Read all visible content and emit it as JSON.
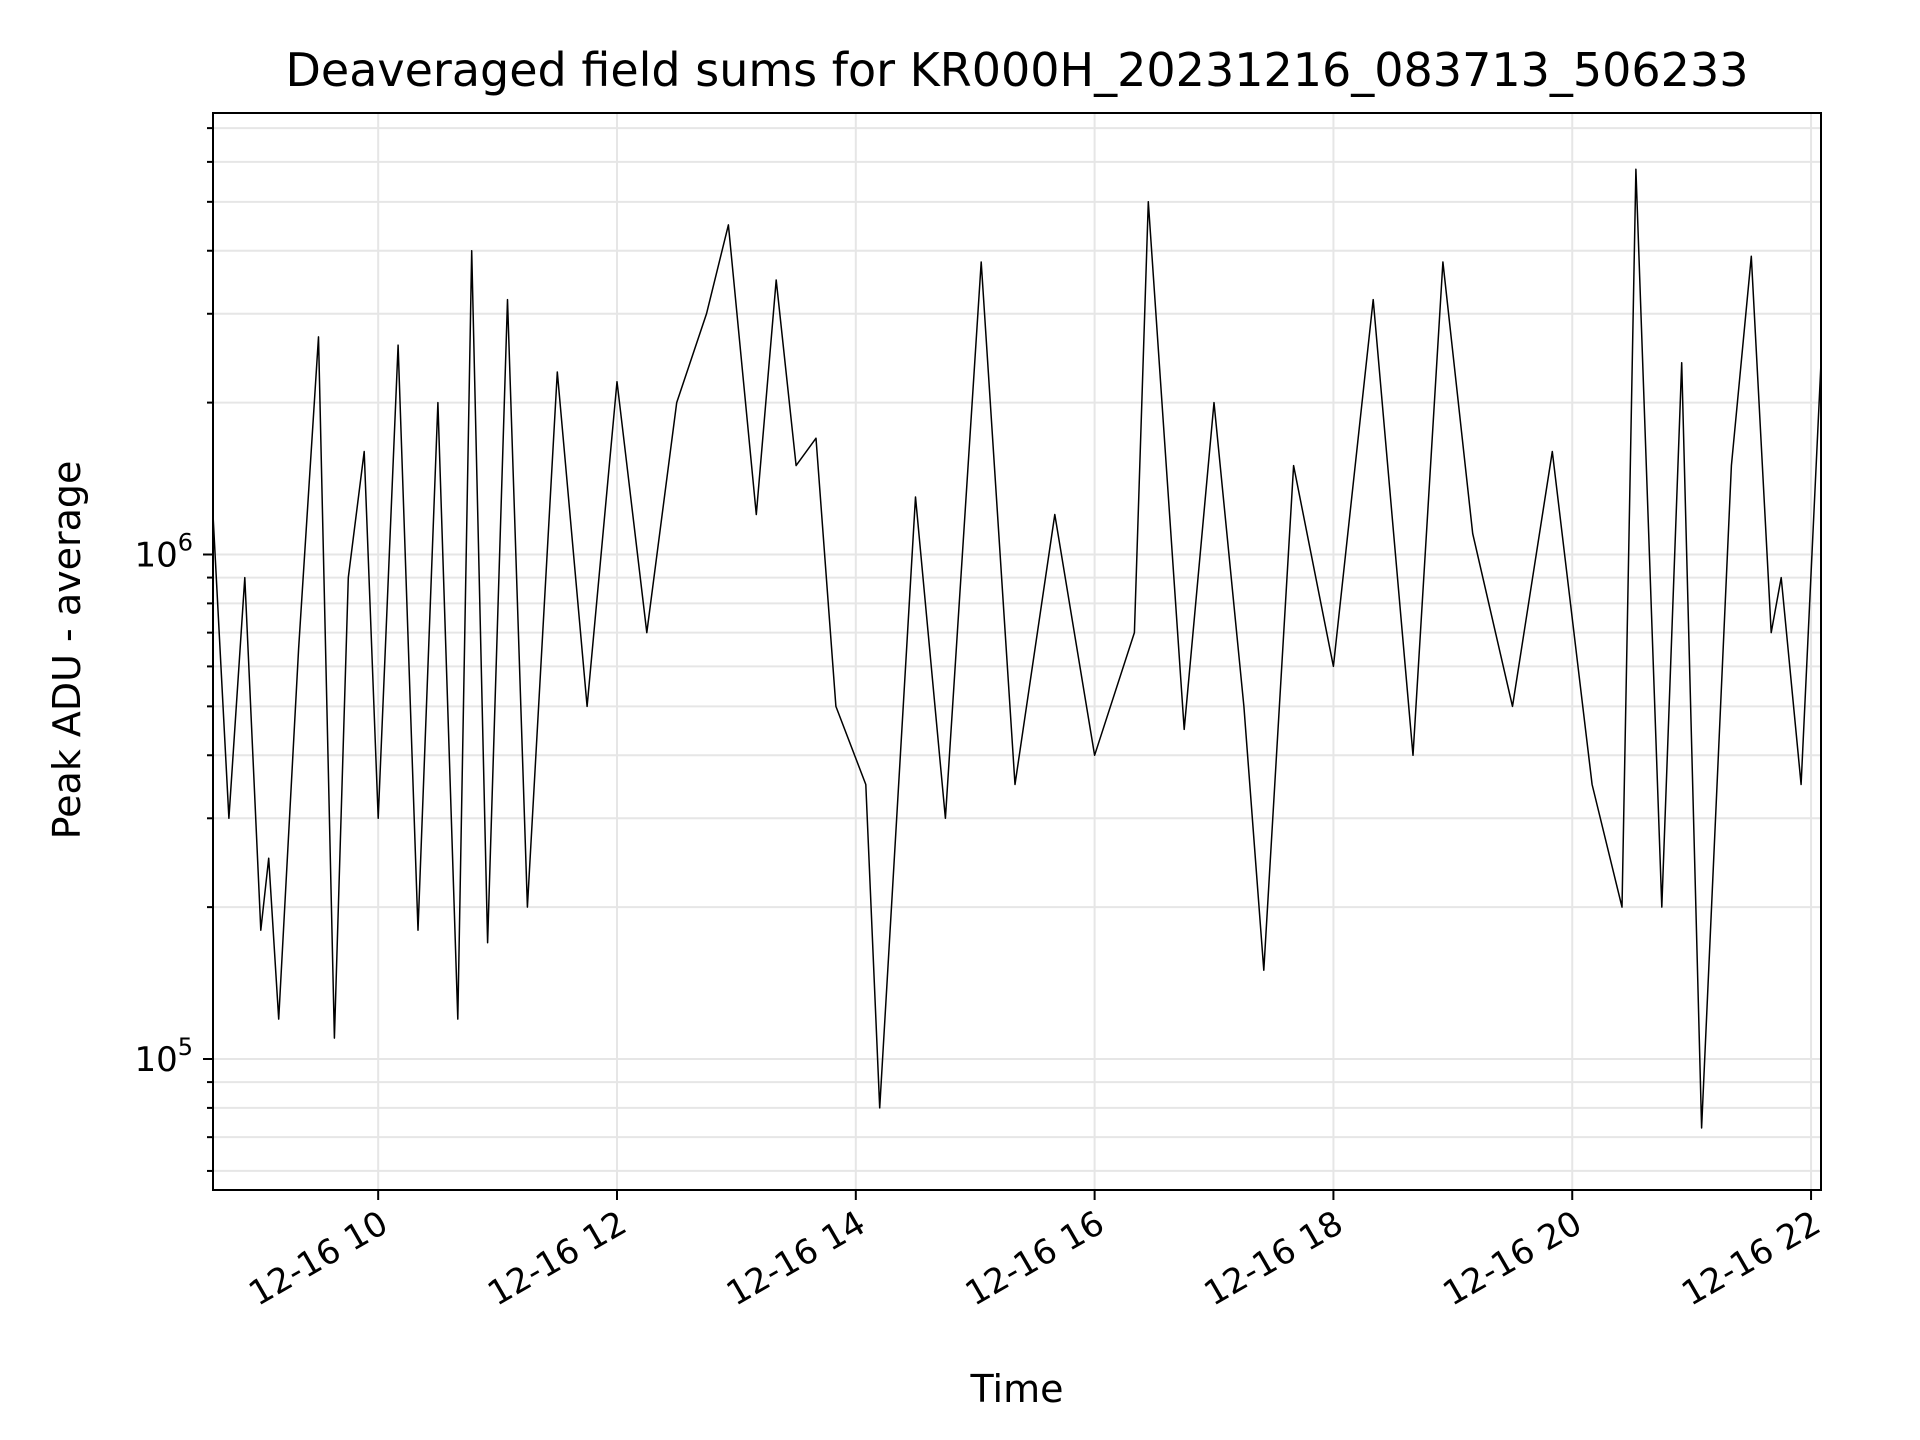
{
  "chart_data": {
    "type": "line",
    "title": "Deaveraged field sums for KR000H_20231216_083713_506233",
    "xlabel": "Time",
    "ylabel": "Peak ADU - average",
    "y_scale": "log",
    "ylim": [
      55000,
      7500000
    ],
    "xlim": [
      "2023-12-16 08:37",
      "2023-12-16 22:05"
    ],
    "grid": true,
    "legend": "none",
    "line_color": "#000000",
    "grid_color": "#e6e6e6",
    "x_ticks": [
      {
        "value": "2023-12-16 10:00",
        "label": "12-16 10"
      },
      {
        "value": "2023-12-16 12:00",
        "label": "12-16 12"
      },
      {
        "value": "2023-12-16 14:00",
        "label": "12-16 14"
      },
      {
        "value": "2023-12-16 16:00",
        "label": "12-16 16"
      },
      {
        "value": "2023-12-16 18:00",
        "label": "12-16 18"
      },
      {
        "value": "2023-12-16 20:00",
        "label": "12-16 20"
      },
      {
        "value": "2023-12-16 22:00",
        "label": "12-16 22"
      }
    ],
    "y_ticks": [
      {
        "value": 100000,
        "base": "10",
        "exp": "5"
      },
      {
        "value": 1000000,
        "base": "10",
        "exp": "6"
      }
    ],
    "series": [
      {
        "x": [
          "2023-12-16 08:37",
          "2023-12-16 08:45",
          "2023-12-16 08:53",
          "2023-12-16 09:01",
          "2023-12-16 09:05",
          "2023-12-16 09:10",
          "2023-12-16 09:20",
          "2023-12-16 09:30",
          "2023-12-16 09:38",
          "2023-12-16 09:45",
          "2023-12-16 09:53",
          "2023-12-16 10:00",
          "2023-12-16 10:10",
          "2023-12-16 10:20",
          "2023-12-16 10:30",
          "2023-12-16 10:40",
          "2023-12-16 10:47",
          "2023-12-16 10:55",
          "2023-12-16 11:05",
          "2023-12-16 11:15",
          "2023-12-16 11:30",
          "2023-12-16 11:45",
          "2023-12-16 12:00",
          "2023-12-16 12:15",
          "2023-12-16 12:30",
          "2023-12-16 12:45",
          "2023-12-16 12:56",
          "2023-12-16 13:10",
          "2023-12-16 13:20",
          "2023-12-16 13:30",
          "2023-12-16 13:40",
          "2023-12-16 13:50",
          "2023-12-16 14:05",
          "2023-12-16 14:12",
          "2023-12-16 14:30",
          "2023-12-16 14:45",
          "2023-12-16 15:03",
          "2023-12-16 15:20",
          "2023-12-16 15:40",
          "2023-12-16 16:00",
          "2023-12-16 16:20",
          "2023-12-16 16:27",
          "2023-12-16 16:45",
          "2023-12-16 17:00",
          "2023-12-16 17:15",
          "2023-12-16 17:25",
          "2023-12-16 17:40",
          "2023-12-16 18:00",
          "2023-12-16 18:20",
          "2023-12-16 18:40",
          "2023-12-16 18:55",
          "2023-12-16 19:10",
          "2023-12-16 19:30",
          "2023-12-16 19:50",
          "2023-12-16 20:10",
          "2023-12-16 20:25",
          "2023-12-16 20:32",
          "2023-12-16 20:45",
          "2023-12-16 20:55",
          "2023-12-16 21:05",
          "2023-12-16 21:20",
          "2023-12-16 21:30",
          "2023-12-16 21:40",
          "2023-12-16 21:45",
          "2023-12-16 21:55",
          "2023-12-16 22:05"
        ],
        "y": [
          1200000,
          300000,
          900000,
          180000,
          250000,
          120000,
          650000,
          2700000,
          110000,
          900000,
          1600000,
          300000,
          2600000,
          180000,
          2000000,
          120000,
          4000000,
          170000,
          3200000,
          200000,
          2300000,
          500000,
          2200000,
          700000,
          2000000,
          3000000,
          4500000,
          1200000,
          3500000,
          1500000,
          1700000,
          500000,
          350000,
          80000,
          1300000,
          300000,
          3800000,
          350000,
          1200000,
          400000,
          700000,
          5000000,
          450000,
          2000000,
          500000,
          150000,
          1500000,
          600000,
          3200000,
          400000,
          3800000,
          1100000,
          500000,
          1600000,
          350000,
          200000,
          5800000,
          200000,
          2400000,
          73000,
          1500000,
          3900000,
          700000,
          900000,
          350000,
          2400000
        ]
      }
    ]
  }
}
